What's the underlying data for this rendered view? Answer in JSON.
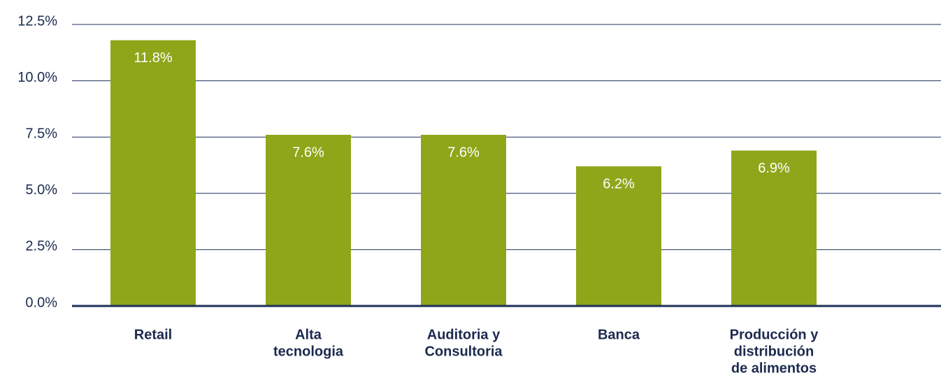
{
  "chart_data": {
    "type": "bar",
    "categories": [
      [
        "Retail"
      ],
      [
        "Alta",
        "tecnologia"
      ],
      [
        "Auditoria y",
        "Consultoria"
      ],
      [
        "Banca"
      ],
      [
        "Producción y",
        "distribución",
        "de alimentos"
      ]
    ],
    "values": [
      11.8,
      7.6,
      7.6,
      6.2,
      6.9
    ],
    "value_labels": [
      "11.8%",
      "7.6%",
      "7.6%",
      "6.2%",
      "6.9%"
    ],
    "color": "#8fa61a",
    "ylim": [
      0,
      12.5
    ],
    "yticks": [
      {
        "value": 0,
        "label": "0.0%"
      },
      {
        "value": 2.5,
        "label": "2.5%"
      },
      {
        "value": 5,
        "label": "5.0%"
      },
      {
        "value": 7.5,
        "label": "7.5%"
      },
      {
        "value": 10,
        "label": "10.0%"
      },
      {
        "value": 12.5,
        "label": "12.5%"
      }
    ],
    "grid": true
  }
}
